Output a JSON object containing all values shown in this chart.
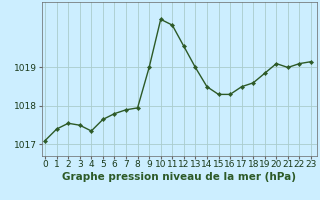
{
  "x": [
    0,
    1,
    2,
    3,
    4,
    5,
    6,
    7,
    8,
    9,
    10,
    11,
    12,
    13,
    14,
    15,
    16,
    17,
    18,
    19,
    20,
    21,
    22,
    23
  ],
  "y": [
    1017.1,
    1017.4,
    1017.55,
    1017.5,
    1017.35,
    1017.65,
    1017.8,
    1017.9,
    1017.95,
    1019.0,
    1020.25,
    1020.1,
    1019.55,
    1019.0,
    1018.5,
    1018.3,
    1018.3,
    1018.5,
    1018.6,
    1018.85,
    1019.1,
    1019.0,
    1019.1,
    1019.15
  ],
  "line_color": "#2d5a27",
  "marker": "D",
  "marker_size": 2.2,
  "bg_color": "#cceeff",
  "plot_bg_color": "#cceeff",
  "grid_color": "#aacccc",
  "yticks": [
    1017,
    1018,
    1019
  ],
  "xticks": [
    0,
    1,
    2,
    3,
    4,
    5,
    6,
    7,
    8,
    9,
    10,
    11,
    12,
    13,
    14,
    15,
    16,
    17,
    18,
    19,
    20,
    21,
    22,
    23
  ],
  "xlabel": "Graphe pression niveau de la mer (hPa)",
  "ylim": [
    1016.7,
    1020.7
  ],
  "xlim": [
    -0.3,
    23.5
  ],
  "xlabel_color": "#2d5a27",
  "xlabel_fontsize": 7.5,
  "tick_fontsize": 6.5,
  "linewidth": 1.0
}
